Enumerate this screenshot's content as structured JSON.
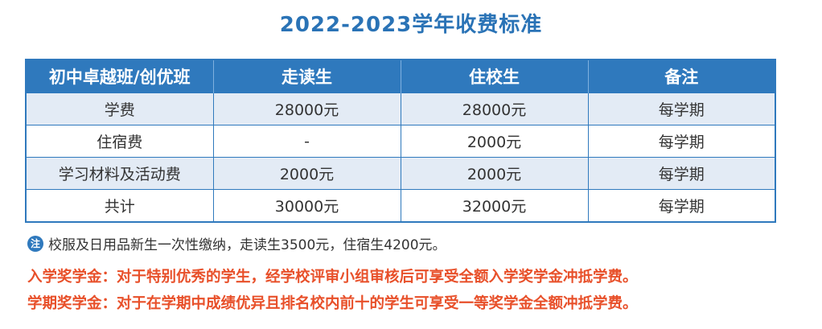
{
  "title": "2022-2023学年收费标准",
  "table": {
    "headers": [
      "初中卓越班/创优班",
      "走读生",
      "住校生",
      "备注"
    ],
    "rows": [
      [
        "学费",
        "28000元",
        "28000元",
        "每学期"
      ],
      [
        "住宿费",
        "-",
        "2000元",
        "每学期"
      ],
      [
        "学习材料及活动费",
        "2000元",
        "2000元",
        "每学期"
      ],
      [
        "共计",
        "30000元",
        "32000元",
        "每学期"
      ]
    ]
  },
  "note": {
    "icon_label": "注",
    "text": "校服及日用品新生一次性缴纳，走读生3500元，住宿生4200元。"
  },
  "policies": [
    "入学奖学金：对于特别优秀的学生，经学校评审小组审核后可享受全额入学奖学金冲抵学费。",
    "学期奖学金：对于在学期中成绩优异且排名校内前十的学生可享受一等奖学金全额冲抵学费。"
  ],
  "colors": {
    "title": "#2a73b6",
    "header_bg": "#2f79bd",
    "alt_row_bg": "#e3ebf5",
    "policy_text": "#e8502a"
  }
}
